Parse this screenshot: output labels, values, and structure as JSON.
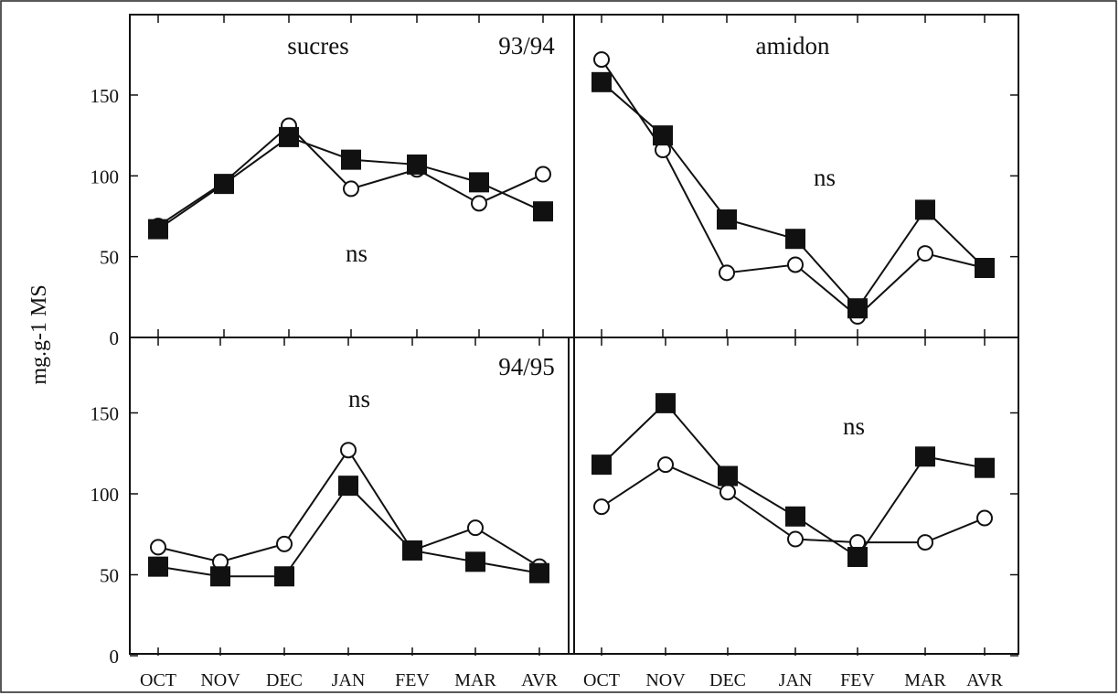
{
  "figure": {
    "ylabel": "mg.g-1 MS"
  },
  "chart_data": [
    {
      "type": "line",
      "panel": "top-left",
      "title": "sucres",
      "period": "93/94",
      "annotation": "ns",
      "categories": [
        "OCT",
        "NOV",
        "DEC",
        "JAN",
        "FEV",
        "MAR",
        "AVR"
      ],
      "ylim": [
        0,
        190
      ],
      "yticks": [
        0,
        50,
        100,
        150
      ],
      "series": [
        {
          "marker": "open-circle",
          "values": [
            69,
            96,
            131,
            92,
            104,
            83,
            101
          ]
        },
        {
          "marker": "filled-square",
          "values": [
            67,
            95,
            124,
            110,
            107,
            96,
            78
          ]
        }
      ]
    },
    {
      "type": "line",
      "panel": "top-right",
      "title": "amidon",
      "annotation": "ns",
      "categories": [
        "OCT",
        "NOV",
        "DEC",
        "JAN",
        "FEV",
        "MAR",
        "AVR"
      ],
      "ylim": [
        0,
        190
      ],
      "yticks": [
        0,
        50,
        100,
        150
      ],
      "series": [
        {
          "marker": "open-circle",
          "values": [
            172,
            116,
            40,
            45,
            13,
            52,
            43
          ]
        },
        {
          "marker": "filled-square",
          "values": [
            158,
            125,
            73,
            61,
            18,
            79,
            43
          ]
        }
      ]
    },
    {
      "type": "line",
      "panel": "bottom-left",
      "period": "94/95",
      "annotation": "ns",
      "categories": [
        "OCT",
        "NOV",
        "DEC",
        "JAN",
        "FEV",
        "MAR",
        "AVR"
      ],
      "ylim": [
        0,
        190
      ],
      "yticks": [
        0,
        50,
        100,
        150
      ],
      "series": [
        {
          "marker": "open-circle",
          "values": [
            67,
            58,
            69,
            127,
            65,
            79,
            55
          ]
        },
        {
          "marker": "filled-square",
          "values": [
            55,
            49,
            49,
            105,
            65,
            58,
            51
          ]
        }
      ]
    },
    {
      "type": "line",
      "panel": "bottom-right",
      "annotation": "ns",
      "categories": [
        "OCT",
        "NOV",
        "DEC",
        "JAN",
        "FEV",
        "MAR",
        "AVR"
      ],
      "ylim": [
        0,
        190
      ],
      "yticks": [
        0,
        50,
        100,
        150
      ],
      "series": [
        {
          "marker": "open-circle",
          "values": [
            92,
            118,
            101,
            72,
            70,
            70,
            85
          ]
        },
        {
          "marker": "filled-square",
          "values": [
            118,
            156,
            111,
            86,
            61,
            123,
            116
          ]
        }
      ]
    }
  ]
}
